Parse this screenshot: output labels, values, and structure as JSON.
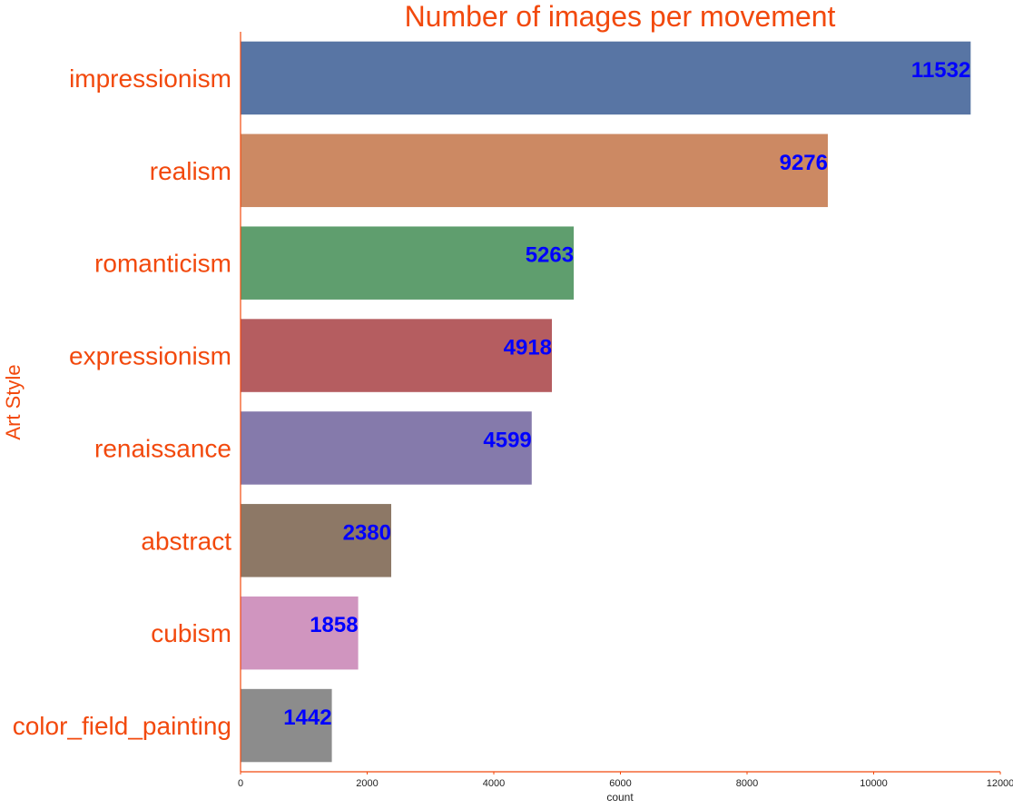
{
  "chart_data": {
    "type": "bar",
    "orientation": "horizontal",
    "title": "Number of images per movement",
    "xlabel": "count",
    "ylabel": "Art Style",
    "xlim": [
      0,
      12000
    ],
    "xticks": [
      0,
      2000,
      4000,
      6000,
      8000,
      10000,
      12000
    ],
    "grid": false,
    "categories": [
      "impressionism",
      "realism",
      "romanticism",
      "expressionism",
      "renaissance",
      "abstract",
      "cubism",
      "color_field_painting"
    ],
    "values": [
      11532,
      9276,
      5263,
      4918,
      4599,
      2380,
      1858,
      1442
    ],
    "colors": [
      "#5875a4",
      "#cc8963",
      "#5f9e6e",
      "#b55d60",
      "#857aab",
      "#8d7866",
      "#d095bf",
      "#8c8c8c"
    ],
    "text_color": "#f2490d",
    "value_label_color": "#0000ff",
    "axis_color": "#f2490d"
  }
}
